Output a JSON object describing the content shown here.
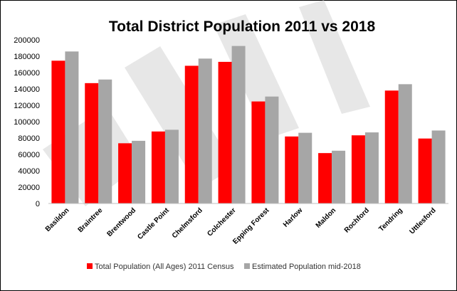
{
  "chart_data": {
    "type": "bar",
    "title": "Total District Population  2011 vs 2018",
    "xlabel": "",
    "ylabel": "",
    "ylim": [
      0,
      200000
    ],
    "yticks": [
      "0",
      "20000",
      "40000",
      "60000",
      "80000",
      "100000",
      "120000",
      "140000",
      "160000",
      "180000",
      "200000"
    ],
    "grid": false,
    "legend_position": "bottom",
    "categories": [
      "Basildon",
      "Braintree",
      "Brentwood",
      "Castle Point",
      "Chelmsford",
      "Colchester",
      "Epping Forest",
      "Harlow",
      "Maldon",
      "Rochford",
      "Tendring",
      "Uttlesford"
    ],
    "series": [
      {
        "name": "Total Population (All Ages) 2011 Census",
        "color": "#ff0000",
        "values": [
          174500,
          147100,
          73600,
          88000,
          168300,
          173100,
          124700,
          81900,
          61600,
          83300,
          138000,
          79400
        ]
      },
      {
        "name": "Estimated Population  mid-2018",
        "color": "#a6a6a6",
        "values": [
          185800,
          151500,
          76600,
          90100,
          177100,
          192500,
          130700,
          86400,
          64500,
          86900,
          145800,
          89200
        ]
      }
    ]
  }
}
